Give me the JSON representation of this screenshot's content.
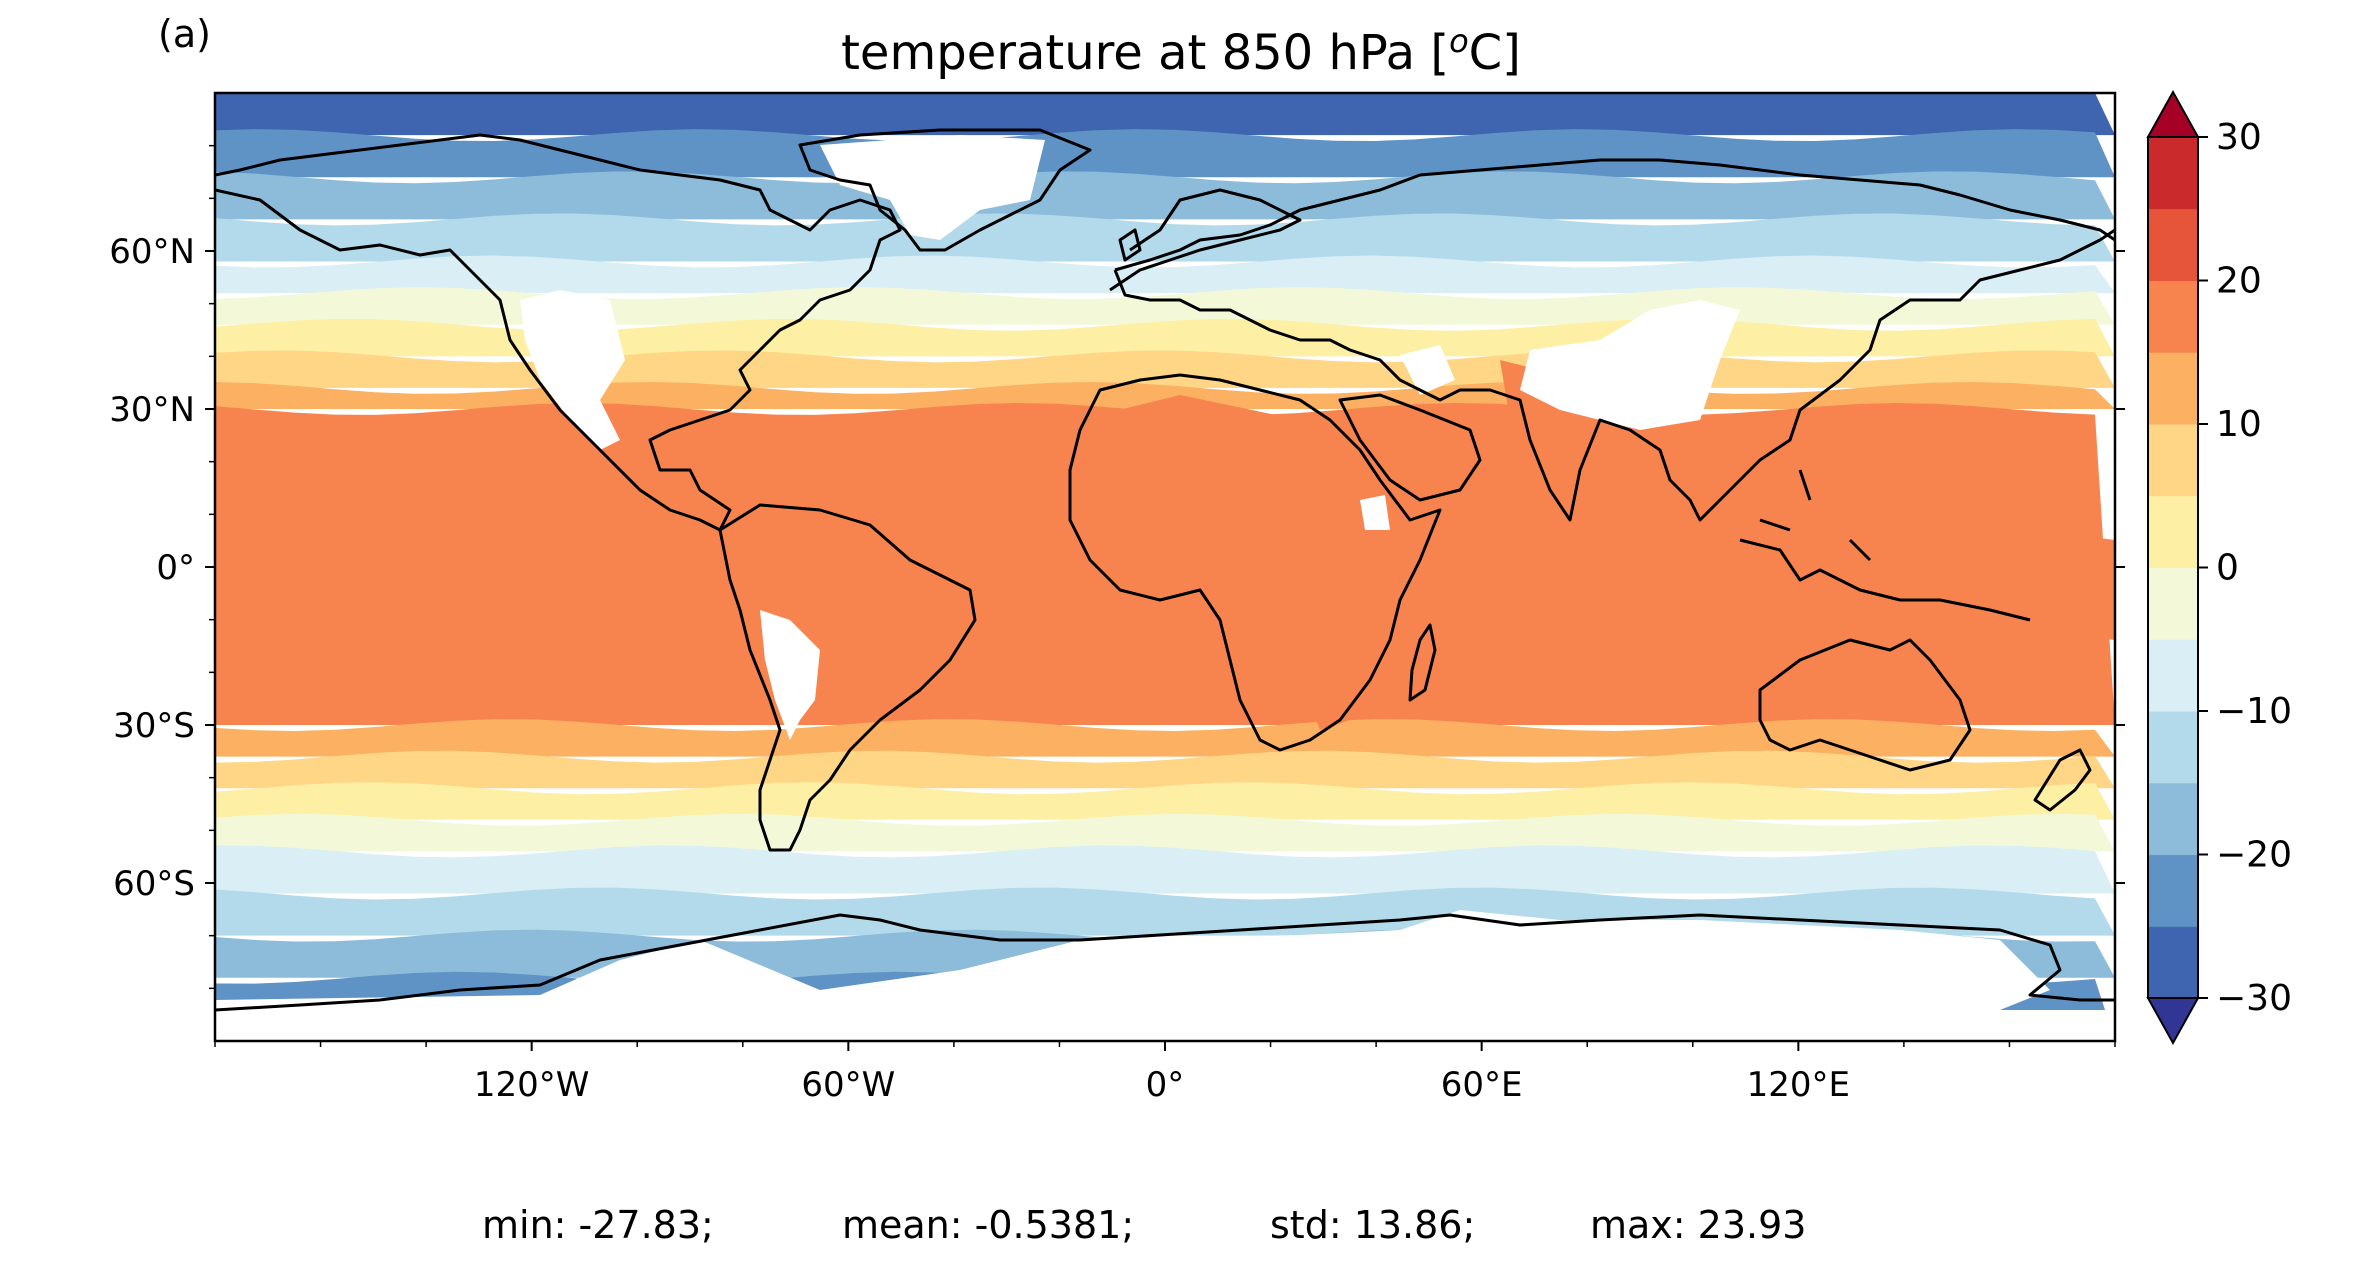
{
  "panel_label": "(a)",
  "title": {
    "main": "temperature at 850 hPa [",
    "sup": "o",
    "unit": "C]"
  },
  "map": {
    "lon_ticks": [
      {
        "lon": -120,
        "label": "120°W"
      },
      {
        "lon": -60,
        "label": "60°W"
      },
      {
        "lon": 0,
        "label": "0°"
      },
      {
        "lon": 60,
        "label": "60°E"
      },
      {
        "lon": 120,
        "label": "120°E"
      }
    ],
    "lat_ticks": [
      {
        "lat": 60,
        "label": "60°N"
      },
      {
        "lat": 30,
        "label": "30°N"
      },
      {
        "lat": 0,
        "label": "0°"
      },
      {
        "lat": -30,
        "label": "30°S"
      },
      {
        "lat": -60,
        "label": "60°S"
      }
    ],
    "lon_range": [
      -180,
      180
    ],
    "lat_range": [
      -90,
      90
    ],
    "missing_color": "#ffffff",
    "coastline_color": "#000000"
  },
  "colorbar": {
    "levels": [
      -30,
      -25,
      -20,
      -15,
      -10,
      -5,
      0,
      5,
      10,
      15,
      20,
      25,
      30
    ],
    "colors": [
      "#313695",
      "#4065b0",
      "#5f93c5",
      "#8cbcd9",
      "#b2daea",
      "#d9eef5",
      "#f3f9d8",
      "#fdf0a5",
      "#fed685",
      "#fcb062",
      "#f7844e",
      "#e6553a",
      "#cb2a2d",
      "#a50026"
    ],
    "extend": "both",
    "tick_labels": [
      {
        "value": 30,
        "label": "30"
      },
      {
        "value": 20,
        "label": "20"
      },
      {
        "value": 10,
        "label": "10"
      },
      {
        "value": 0,
        "label": "0"
      },
      {
        "value": -10,
        "label": "−10"
      },
      {
        "value": -20,
        "label": "−20"
      },
      {
        "value": -30,
        "label": "−30"
      }
    ]
  },
  "stats": {
    "min": "min: -27.83;",
    "mean": "mean: -0.5381;",
    "std": "std: 13.86;",
    "max": "max: 23.93"
  }
}
